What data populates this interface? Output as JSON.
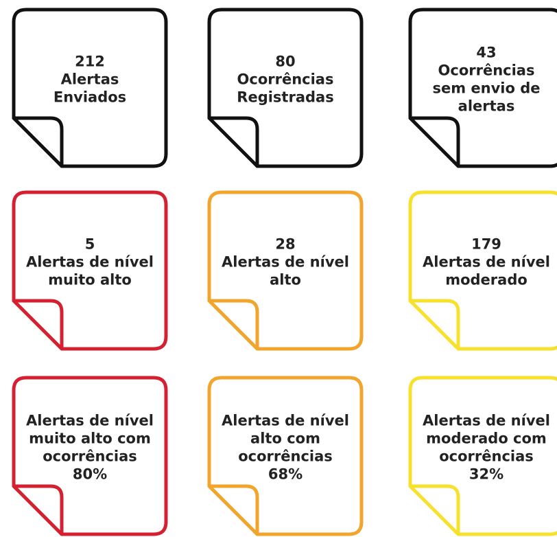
{
  "cards": [
    {
      "color": "#111111",
      "lines": [
        "212",
        "Alertas",
        "Enviados"
      ]
    },
    {
      "color": "#111111",
      "lines": [
        "80",
        "Ocorrências",
        "Registradas"
      ]
    },
    {
      "color": "#111111",
      "lines": [
        "43",
        "Ocorrências",
        "sem envio de",
        "alertas"
      ]
    },
    {
      "color": "#d42030",
      "lines": [
        "5",
        "Alertas de nível",
        "muito alto"
      ]
    },
    {
      "color": "#f2a52c",
      "lines": [
        "28",
        "Alertas de nível",
        "alto"
      ]
    },
    {
      "color": "#f6e12c",
      "lines": [
        "179",
        "Alertas de nível",
        "moderado"
      ]
    },
    {
      "color": "#d42030",
      "lines": [
        "Alertas de nível",
        "muito alto com",
        "ocorrências",
        "80%"
      ]
    },
    {
      "color": "#f2a52c",
      "lines": [
        "Alertas de nível",
        "alto com",
        "ocorrências",
        "68%"
      ]
    },
    {
      "color": "#f6e12c",
      "lines": [
        "Alertas de nível",
        "moderado com",
        "ocorrências",
        "32%"
      ]
    }
  ]
}
